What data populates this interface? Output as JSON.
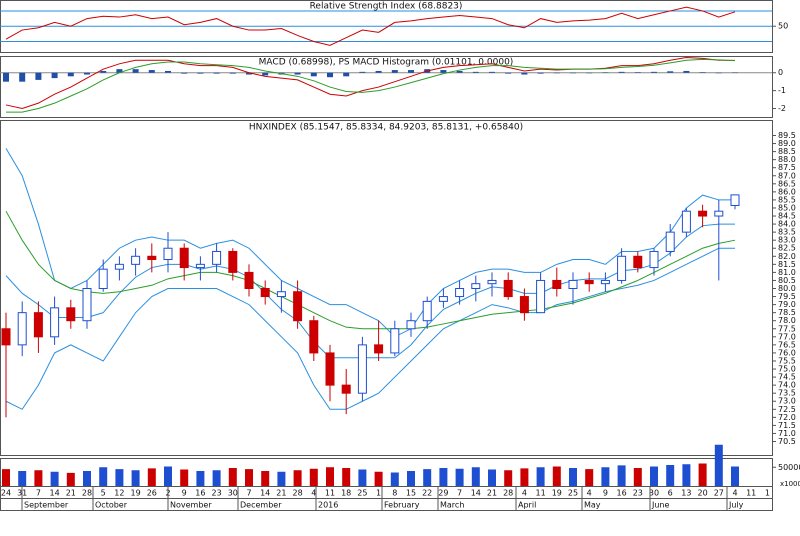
{
  "chart_data": [
    {
      "type": "line",
      "title": "Relative Strength Index (68.8823)",
      "color": "#cc0000",
      "values": [
        33,
        45,
        48,
        55,
        50,
        60,
        63,
        62,
        65,
        60,
        62,
        52,
        55,
        60,
        50,
        45,
        45,
        47,
        38,
        30,
        25,
        35,
        45,
        42,
        55,
        57,
        60,
        62,
        64,
        62,
        60,
        52,
        48,
        60,
        55,
        57,
        58,
        60,
        67,
        60,
        65,
        70,
        75,
        70,
        62,
        68.8823,
        null,
        null
      ],
      "ylim": [
        15,
        83
      ],
      "yticks": [
        50
      ],
      "levels": [
        30,
        70
      ],
      "level_color": "#2a8fe0"
    },
    {
      "type": "macd",
      "title": "MACD (0.68998), PS MACD Histogram (0.01101, 0.0000)",
      "series": [
        {
          "color": "#cc0000",
          "values": [
            -1.8,
            -2,
            -1.7,
            -1.2,
            -0.8,
            -0.3,
            0.2,
            0.5,
            0.7,
            0.7,
            0.7,
            0.5,
            0.4,
            0.4,
            0.3,
            0,
            -0.2,
            -0.3,
            -0.4,
            -0.8,
            -1.2,
            -1.3,
            -1,
            -0.8,
            -0.5,
            -0.2,
            0.1,
            0.3,
            0.4,
            0.45,
            0.5,
            0.3,
            0.1,
            0.2,
            0.15,
            0.2,
            0.2,
            0.25,
            0.4,
            0.4,
            0.5,
            0.7,
            0.85,
            0.8,
            0.7,
            0.68998,
            null,
            null
          ]
        },
        {
          "color": "#2a9d2a",
          "values": [
            -2.2,
            -2.2,
            -2,
            -1.7,
            -1.3,
            -0.9,
            -0.4,
            0,
            0.3,
            0.5,
            0.6,
            0.6,
            0.5,
            0.45,
            0.4,
            0.3,
            0.1,
            -0.05,
            -0.2,
            -0.45,
            -0.8,
            -1.05,
            -1.1,
            -1,
            -0.8,
            -0.55,
            -0.3,
            -0.05,
            0.15,
            0.3,
            0.4,
            0.4,
            0.3,
            0.25,
            0.2,
            0.2,
            0.2,
            0.22,
            0.3,
            0.35,
            0.42,
            0.55,
            0.7,
            0.75,
            0.72,
            0.68,
            null,
            null
          ]
        }
      ],
      "histogram": {
        "color": "#1f4fa8",
        "values": [
          -0.5,
          -0.5,
          -0.4,
          -0.3,
          -0.2,
          -0.1,
          0.1,
          0.2,
          0.2,
          0.15,
          0.1,
          -0.05,
          -0.05,
          -0.05,
          -0.05,
          -0.1,
          -0.15,
          -0.1,
          -0.1,
          -0.2,
          -0.25,
          -0.2,
          0.05,
          0.1,
          0.15,
          0.15,
          0.2,
          0.15,
          0.1,
          0.05,
          0.05,
          -0.05,
          -0.1,
          -0.05,
          -0.02,
          0,
          0,
          0.02,
          0.05,
          0.03,
          0.05,
          0.08,
          0.1,
          0.03,
          -0.02,
          0.01101,
          null,
          null
        ]
      },
      "ylim": [
        -2.53,
        0.88
      ],
      "yticks": [
        -2,
        -1,
        0
      ]
    },
    {
      "type": "candlestick",
      "title": "HNXINDEX (85.1547, 85.8334, 84.9203, 85.8131, +0.65840)",
      "up_color": "#1e4fd0",
      "down_color": "#cc0000",
      "open": [
        77.5,
        76.5,
        78.5,
        77,
        78.8,
        78,
        80,
        81.2,
        81.5,
        82,
        81.8,
        82.5,
        81.3,
        81.5,
        82.3,
        81,
        80,
        79.5,
        79.8,
        78,
        76,
        74,
        73.5,
        76.5,
        76,
        77.5,
        78,
        79.2,
        79.5,
        80,
        80.3,
        80.5,
        79.5,
        78.5,
        80.5,
        80,
        80.5,
        80.3,
        80.5,
        82,
        81.3,
        82.3,
        83.5,
        84.8,
        84.5,
        85.1547,
        null,
        null
      ],
      "high": [
        78.5,
        79.2,
        79.2,
        79.5,
        79.3,
        80.5,
        81.8,
        82,
        82.5,
        82.8,
        83.5,
        82.8,
        82,
        82.8,
        82.5,
        81.5,
        80.5,
        80.5,
        80.5,
        78.3,
        76.5,
        75,
        77,
        78,
        78,
        78.5,
        79.5,
        80,
        80.5,
        80.8,
        81,
        81,
        80,
        81,
        81.3,
        81,
        81,
        81,
        82.5,
        82.3,
        82.5,
        84,
        85,
        85.2,
        85.5,
        85.8334,
        null,
        null
      ],
      "low": [
        72,
        75.8,
        76,
        76.5,
        77.5,
        77.5,
        79.8,
        80.5,
        80.8,
        81,
        81,
        80.5,
        80.5,
        81,
        80.5,
        79.5,
        79,
        78.5,
        77.5,
        75.5,
        73,
        72.2,
        73,
        75.5,
        75.8,
        77,
        77.5,
        78.8,
        79,
        79.2,
        79.5,
        79.3,
        78,
        78.5,
        79.5,
        79,
        79.8,
        79.8,
        80.3,
        81,
        80.8,
        82,
        83.2,
        83.8,
        80.5,
        84.9203,
        null,
        null
      ],
      "close": [
        76.5,
        78.5,
        77,
        78.8,
        78,
        80,
        81.2,
        81.5,
        82,
        81.8,
        82.5,
        81.3,
        81.5,
        82.3,
        81,
        80,
        79.5,
        79.8,
        78,
        76,
        74,
        73.5,
        76.5,
        76,
        77.5,
        78,
        79.2,
        79.5,
        80,
        80.3,
        80.5,
        79.5,
        78.5,
        80.5,
        80,
        80.5,
        80.3,
        80.5,
        82,
        81.3,
        82.3,
        83.5,
        84.8,
        84.5,
        84.8,
        85.8131,
        null,
        null
      ],
      "overlays": [
        {
          "color": "#2a8fe0",
          "values": [
            88.7,
            87,
            84,
            80.5,
            80,
            80.5,
            81.5,
            82.5,
            83,
            83.2,
            83,
            83,
            82.5,
            82.8,
            83,
            82.5,
            81.5,
            80.5,
            80,
            79.5,
            79,
            79,
            78.5,
            78,
            77,
            77.5,
            79,
            80,
            80.5,
            81,
            81.2,
            81.2,
            81,
            81,
            81.5,
            81.8,
            81.8,
            81.5,
            82.3,
            82.3,
            82.5,
            83.5,
            85,
            85.8,
            85.5,
            85.5,
            null,
            null
          ]
        },
        {
          "color": "#2a8fe0",
          "values": [
            80.8,
            79.7,
            79,
            78.2,
            78.2,
            78.2,
            78.5,
            79.7,
            80.7,
            81.3,
            81.5,
            81.5,
            81.2,
            81.4,
            81.2,
            80.7,
            79.7,
            78.7,
            78,
            76.7,
            75.7,
            75.7,
            75.7,
            75.7,
            75.7,
            76.5,
            77.7,
            78.7,
            79.2,
            79.7,
            80.1,
            80,
            79.7,
            79.7,
            80.2,
            80.5,
            80.6,
            80.6,
            81.1,
            81.2,
            81.5,
            82.2,
            83.2,
            83.9,
            84,
            84,
            null,
            null
          ]
        },
        {
          "color": "#2a8fe0",
          "values": [
            73,
            72.5,
            74,
            76,
            76.5,
            76,
            75.5,
            77,
            78.5,
            79.5,
            80,
            80,
            80,
            80,
            79.5,
            79,
            78,
            77,
            76,
            74,
            72.5,
            72.5,
            73,
            73.5,
            74.5,
            75.5,
            76.5,
            77.5,
            78,
            78.5,
            79,
            78.8,
            78.5,
            78.5,
            79,
            79.2,
            79.5,
            79.8,
            80,
            80.2,
            80.5,
            81,
            81.5,
            82,
            82.5,
            82.5,
            null,
            null
          ]
        },
        {
          "color": "#2a9d2a",
          "values": [
            84.8,
            83,
            81.5,
            80.5,
            80,
            79.8,
            79.7,
            79.8,
            80,
            80.2,
            80.6,
            80.8,
            81,
            81,
            80.8,
            80.5,
            80,
            79.5,
            79,
            78.5,
            78,
            77.6,
            77.5,
            77.5,
            77.5,
            77.5,
            77.6,
            77.8,
            78,
            78.2,
            78.4,
            78.5,
            78.6,
            78.7,
            78.9,
            79.1,
            79.4,
            79.7,
            80.1,
            80.5,
            81,
            81.5,
            82,
            82.5,
            82.8,
            83,
            null,
            null
          ]
        }
      ],
      "ylim": [
        69.6,
        90.4
      ],
      "yticks": [
        70.5,
        {
          "value": 71,
          "label": "71.0"
        },
        71.5,
        {
          "value": 72,
          "label": "72.0"
        },
        72.5,
        {
          "value": 73,
          "label": "73.0"
        },
        73.5,
        {
          "value": 74,
          "label": "74.0"
        },
        74.5,
        {
          "value": 75,
          "label": "75.0"
        },
        75.5,
        {
          "value": 76,
          "label": "76.0"
        },
        76.5,
        {
          "value": 77,
          "label": "77.0"
        },
        77.5,
        {
          "value": 78,
          "label": "78.0"
        },
        78.5,
        {
          "value": 79,
          "label": "79.0"
        },
        79.5,
        {
          "value": 80,
          "label": "80.0"
        },
        80.5,
        {
          "value": 81,
          "label": "81.0"
        },
        81.5,
        {
          "value": 82,
          "label": "82.0"
        },
        82.5,
        {
          "value": 83,
          "label": "83.0"
        },
        83.5,
        {
          "value": 84,
          "label": "84.0"
        },
        84.5,
        {
          "value": 85,
          "label": "85.0"
        },
        85.5,
        {
          "value": 86,
          "label": "86.0"
        },
        86.5,
        {
          "value": 87,
          "label": "87.0"
        },
        87.5,
        {
          "value": 88,
          "label": "88.0"
        },
        88.5,
        {
          "value": 89,
          "label": "89.0"
        },
        89.5
      ]
    },
    {
      "type": "volume",
      "unit_label": "x1000",
      "values": [
        45000,
        40000,
        42000,
        38000,
        35000,
        40000,
        50000,
        45000,
        42000,
        47000,
        52000,
        44000,
        40000,
        42000,
        48000,
        45000,
        40000,
        38000,
        42000,
        46000,
        50000,
        48000,
        44000,
        38000,
        36000,
        40000,
        45000,
        48000,
        46000,
        50000,
        44000,
        42000,
        47000,
        50000,
        52000,
        48000,
        45000,
        50000,
        55000,
        48000,
        52000,
        56000,
        58000,
        60000,
        110000,
        52000,
        null,
        null
      ],
      "ylim": [
        0,
        72000
      ],
      "yticks": [
        50000
      ],
      "categories": [
        "24",
        "31",
        "7",
        "14",
        "21",
        "28",
        "5",
        "12",
        "19",
        "26",
        "2",
        "9",
        "16",
        "23",
        "30",
        "7",
        "14",
        "21",
        "28",
        "4",
        "11",
        "18",
        "25",
        "1",
        "8",
        "15",
        "22",
        "29",
        "7",
        "14",
        "21",
        "28",
        "4",
        "11",
        "19",
        "25",
        "4",
        "9",
        "16",
        "23",
        "30",
        "6",
        "13",
        "20",
        "27",
        "4",
        "11",
        "1"
      ],
      "groups": [
        "September",
        "October",
        "November",
        "December",
        "2016",
        "February",
        "March",
        "April",
        "May",
        "June",
        "July"
      ]
    }
  ]
}
